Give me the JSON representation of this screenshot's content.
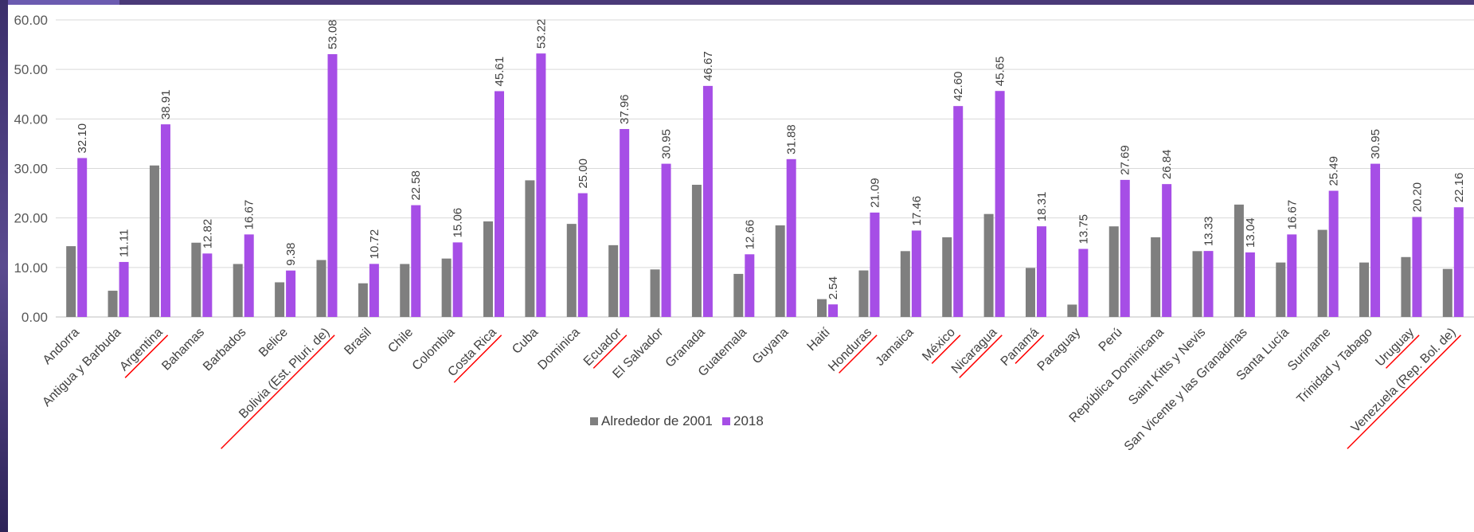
{
  "chart_data": {
    "type": "bar",
    "title": "",
    "xlabel": "",
    "ylabel": "",
    "ylim": [
      0,
      60
    ],
    "yticks": [
      "0.00",
      "10.00",
      "20.00",
      "30.00",
      "40.00",
      "50.00",
      "60.00"
    ],
    "grid": true,
    "legend_position": "bottom",
    "categories": [
      "Andorra",
      "Antigua y Barbuda",
      "Argentina",
      "Bahamas",
      "Barbados",
      "Belice",
      "Bolivia (Est. Pluri. de)",
      "Brasil",
      "Chile",
      "Colombia",
      "Costa Rica",
      "Cuba",
      "Dominica",
      "Ecuador",
      "El Salvador",
      "Granada",
      "Guatemala",
      "Guyana",
      "Haití",
      "Honduras",
      "Jamaica",
      "México",
      "Nicaragua",
      "Panamá",
      "Paraguay",
      "Perú",
      "República Dominicana",
      "Saint Kitts y Nevis",
      "San Vicente y las Granadinas",
      "Santa Lucía",
      "Suriname",
      "Trinidad y Tabago",
      "Uruguay",
      "Venezuela (Rep. Bol. de)"
    ],
    "underlined_categories": [
      "Argentina",
      "Bolivia (Est. Pluri. de)",
      "Costa Rica",
      "Ecuador",
      "Honduras",
      "México",
      "Nicaragua",
      "Panamá",
      "Uruguay",
      "Venezuela (Rep. Bol. de)"
    ],
    "series": [
      {
        "name": "Alrededor de 2001",
        "color": "#7f7f7f",
        "values": [
          14.3,
          5.3,
          30.6,
          15.0,
          10.7,
          7.0,
          11.5,
          6.8,
          10.7,
          11.8,
          19.3,
          27.6,
          18.8,
          14.5,
          9.6,
          26.7,
          8.7,
          18.5,
          3.6,
          9.4,
          13.3,
          16.1,
          20.8,
          9.9,
          2.5,
          18.3,
          16.1,
          13.3,
          22.7,
          11.0,
          17.6,
          11.0,
          12.1,
          9.7
        ],
        "labels": []
      },
      {
        "name": "2018",
        "color": "#a64ee6",
        "values": [
          32.1,
          11.11,
          38.91,
          12.82,
          16.67,
          9.38,
          53.08,
          10.72,
          22.58,
          15.06,
          45.61,
          53.22,
          25.0,
          37.96,
          30.95,
          46.67,
          12.66,
          31.88,
          2.54,
          21.09,
          17.46,
          42.6,
          45.65,
          18.31,
          13.75,
          27.69,
          26.84,
          13.33,
          13.04,
          16.67,
          25.49,
          30.95,
          20.2,
          22.16
        ],
        "labels": [
          "32.10",
          "11.11",
          "38.91",
          "12.82",
          "16.67",
          "9.38",
          "53.08",
          "10.72",
          "22.58",
          "15.06",
          "45.61",
          "53.22",
          "25.00",
          "37.96",
          "30.95",
          "46.67",
          "12.66",
          "31.88",
          "2.54",
          "21.09",
          "17.46",
          "42.60",
          "45.65",
          "18.31",
          "13.75",
          "27.69",
          "26.84",
          "13.33",
          "13.04",
          "16.67",
          "25.49",
          "30.95",
          "20.20",
          "22.16"
        ]
      }
    ]
  },
  "colors": {
    "grid": "#d9d9d9",
    "axis": "#bfbfbf",
    "underline": "#ff0000"
  }
}
